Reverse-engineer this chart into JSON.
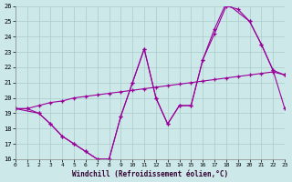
{
  "xlabel": "Windchill (Refroidissement éolien,°C)",
  "bg_color": "#cce8e8",
  "grid_color": "#aacccc",
  "line_color": "#990099",
  "xlim": [
    0,
    23
  ],
  "ylim": [
    16,
    26
  ],
  "xticks": [
    0,
    1,
    2,
    3,
    4,
    5,
    6,
    7,
    8,
    9,
    10,
    11,
    12,
    13,
    14,
    15,
    16,
    17,
    18,
    19,
    20,
    21,
    22,
    23
  ],
  "yticks": [
    16,
    17,
    18,
    19,
    20,
    21,
    22,
    23,
    24,
    25,
    26
  ],
  "line1_x": [
    0,
    1,
    2,
    3,
    4,
    5,
    6,
    7,
    8,
    9,
    10,
    11,
    12,
    13,
    14,
    15,
    16,
    17,
    18,
    19,
    20,
    21,
    22,
    23
  ],
  "line1_y": [
    19.3,
    19.3,
    19.0,
    18.3,
    17.5,
    17.0,
    16.5,
    16.0,
    16.0,
    18.8,
    21.0,
    23.2,
    20.0,
    18.3,
    19.5,
    19.5,
    22.5,
    24.2,
    26.0,
    25.8,
    25.0,
    23.5,
    21.8,
    21.5
  ],
  "line2_x": [
    0,
    2,
    3,
    4,
    5,
    6,
    7,
    8,
    9,
    10,
    11,
    12,
    13,
    14,
    15,
    16,
    17,
    18,
    20,
    21,
    22,
    23
  ],
  "line2_y": [
    19.3,
    19.0,
    18.3,
    17.5,
    17.0,
    16.5,
    16.0,
    16.0,
    18.8,
    21.0,
    23.2,
    20.0,
    18.3,
    19.5,
    19.5,
    22.5,
    24.5,
    26.2,
    25.0,
    23.5,
    21.8,
    19.3
  ],
  "line3_x": [
    0,
    1,
    2,
    3,
    4,
    5,
    6,
    7,
    8,
    9,
    10,
    11,
    12,
    13,
    14,
    15,
    16,
    17,
    18,
    19,
    20,
    21,
    22,
    23
  ],
  "line3_y": [
    19.3,
    19.3,
    19.5,
    19.7,
    19.8,
    20.0,
    20.1,
    20.2,
    20.3,
    20.4,
    20.5,
    20.6,
    20.7,
    20.8,
    20.9,
    21.0,
    21.1,
    21.2,
    21.3,
    21.4,
    21.5,
    21.6,
    21.7,
    21.5
  ]
}
